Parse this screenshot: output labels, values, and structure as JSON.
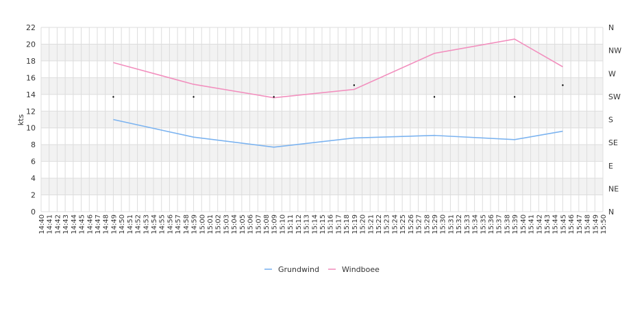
{
  "chart_data": {
    "type": "line",
    "ylabel": "kts",
    "y_left": {
      "min": 0,
      "max": 22,
      "ticks": [
        0,
        2,
        4,
        6,
        8,
        10,
        12,
        14,
        16,
        18,
        20,
        22
      ]
    },
    "y_right_ticks": [
      "N",
      "NE",
      "E",
      "SE",
      "S",
      "SW",
      "W",
      "NW",
      "N"
    ],
    "x_start": "14:40",
    "x_end": "15:50",
    "x_ticks": [
      "14:40",
      "14:41",
      "14:42",
      "14:43",
      "14:44",
      "14:45",
      "14:46",
      "14:47",
      "14:48",
      "14:49",
      "14:50",
      "14:51",
      "14:52",
      "14:53",
      "14:54",
      "14:55",
      "14:56",
      "14:57",
      "14:58",
      "14:59",
      "15:00",
      "15:01",
      "15:02",
      "15:03",
      "15:04",
      "15:05",
      "15:06",
      "15:07",
      "15:08",
      "15:09",
      "15:10",
      "15:11",
      "15:12",
      "15:13",
      "15:14",
      "15:15",
      "15:16",
      "15:17",
      "15:18",
      "15:19",
      "15:20",
      "15:21",
      "15:22",
      "15:23",
      "15:24",
      "15:25",
      "15:26",
      "15:27",
      "15:28",
      "15:29",
      "15:30",
      "15:31",
      "15:32",
      "15:33",
      "15:34",
      "15:35",
      "15:36",
      "15:37",
      "15:38",
      "15:39",
      "15:40",
      "15:41",
      "15:42",
      "15:43",
      "15:44",
      "15:45",
      "15:46",
      "15:47",
      "15:48",
      "15:49",
      "15:50"
    ],
    "series": [
      {
        "name": "Grundwind",
        "color": "#7bb3f0",
        "points": [
          {
            "x": "14:49",
            "y": 11.0
          },
          {
            "x": "14:59",
            "y": 8.9
          },
          {
            "x": "15:09",
            "y": 7.7
          },
          {
            "x": "15:19",
            "y": 8.8
          },
          {
            "x": "15:29",
            "y": 9.1
          },
          {
            "x": "15:39",
            "y": 8.6
          },
          {
            "x": "15:45",
            "y": 9.6
          }
        ]
      },
      {
        "name": "Windboee",
        "color": "#f28fbe",
        "points": [
          {
            "x": "14:49",
            "y": 17.8
          },
          {
            "x": "14:59",
            "y": 15.2
          },
          {
            "x": "15:09",
            "y": 13.6
          },
          {
            "x": "15:19",
            "y": 14.6
          },
          {
            "x": "15:29",
            "y": 18.9
          },
          {
            "x": "15:39",
            "y": 20.6
          },
          {
            "x": "15:45",
            "y": 17.3
          }
        ]
      }
    ],
    "direction_markers": [
      {
        "x": "14:49",
        "y": 13.7
      },
      {
        "x": "14:59",
        "y": 13.7
      },
      {
        "x": "15:09",
        "y": 13.7
      },
      {
        "x": "15:19",
        "y": 15.1
      },
      {
        "x": "15:29",
        "y": 13.7
      },
      {
        "x": "15:39",
        "y": 13.7
      },
      {
        "x": "15:45",
        "y": 15.1
      }
    ],
    "legend": {
      "position": "bottom-center",
      "items": [
        "Grundwind",
        "Windboee"
      ]
    },
    "grid": true,
    "band_color": "#f2f2f2",
    "grid_color": "#dddddd"
  }
}
